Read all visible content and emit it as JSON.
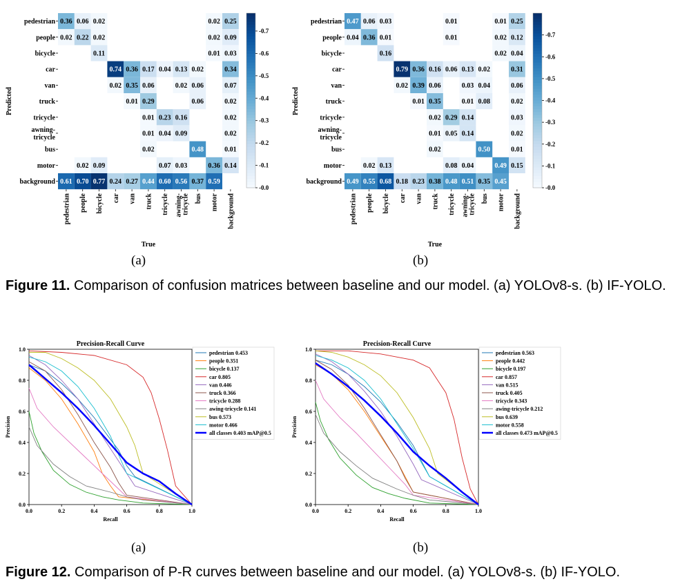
{
  "colors": {
    "cm_low": "#f7fbff",
    "cm_high": "#08306b",
    "pr_mean": "#0000ff"
  },
  "figure11": {
    "caption_label": "Figure 11.",
    "caption_text": "Comparison of confusion matrices between baseline and our model. (a) YOLOv8-s. (b) IF-YOLO.",
    "panel_a": "(a)",
    "panel_b": "(b)",
    "row_labels": [
      "pedestrian",
      "people",
      "bicycle",
      "car",
      "van",
      "truck",
      "tricycle",
      "awning-tricycle",
      "bus",
      "motor",
      "background"
    ],
    "col_labels": [
      "pedestrian",
      "people",
      "bicycle",
      "car",
      "van",
      "truck",
      "tricycle",
      "awning-tricycle",
      "bus",
      "motor",
      "background"
    ],
    "xlabel": "True",
    "ylabel": "Predicted",
    "colorbar_ticks": [
      "0.0",
      "0.1",
      "0.2",
      "0.3",
      "0.4",
      "0.5",
      "0.6",
      "0.7"
    ]
  },
  "figure12": {
    "caption_label": "Figure 12.",
    "caption_text": "Comparison of P-R curves between baseline and our model. (a) YOLOv8-s. (b) IF-YOLO.",
    "panel_a": "(a)",
    "panel_b": "(b)",
    "ticks": [
      "0.0",
      "0.2",
      "0.4",
      "0.6",
      "0.8",
      "1.0"
    ]
  },
  "chart_data": [
    {
      "type": "heatmap",
      "panel": "a",
      "xlabel": "True",
      "ylabel": "Predicted",
      "rows": [
        "pedestrian",
        "people",
        "bicycle",
        "car",
        "van",
        "truck",
        "tricycle",
        "awning-tricycle",
        "bus",
        "motor",
        "background"
      ],
      "cols": [
        "pedestrian",
        "people",
        "bicycle",
        "car",
        "van",
        "truck",
        "tricycle",
        "awning-tricycle",
        "bus",
        "motor",
        "background"
      ],
      "range": [
        0,
        0.78
      ],
      "values": [
        [
          0.36,
          0.06,
          0.02,
          null,
          null,
          null,
          null,
          null,
          null,
          0.02,
          0.25
        ],
        [
          0.02,
          0.22,
          0.02,
          null,
          null,
          null,
          null,
          null,
          null,
          0.02,
          0.09
        ],
        [
          null,
          null,
          0.11,
          null,
          null,
          null,
          null,
          null,
          null,
          0.01,
          0.03
        ],
        [
          null,
          null,
          null,
          0.74,
          0.36,
          0.17,
          0.04,
          0.13,
          0.02,
          null,
          0.34
        ],
        [
          null,
          null,
          null,
          0.02,
          0.35,
          0.06,
          null,
          0.02,
          0.06,
          null,
          0.07
        ],
        [
          null,
          null,
          null,
          null,
          0.01,
          0.29,
          null,
          null,
          0.06,
          null,
          0.02
        ],
        [
          null,
          null,
          null,
          null,
          null,
          0.01,
          0.23,
          0.16,
          null,
          null,
          0.02
        ],
        [
          null,
          null,
          null,
          null,
          null,
          0.01,
          0.04,
          0.09,
          null,
          null,
          0.02
        ],
        [
          null,
          null,
          null,
          null,
          null,
          0.02,
          null,
          null,
          0.48,
          null,
          0.01
        ],
        [
          null,
          0.02,
          0.09,
          null,
          null,
          null,
          0.07,
          0.03,
          null,
          0.36,
          0.14
        ],
        [
          0.61,
          0.7,
          0.77,
          0.24,
          0.27,
          0.44,
          0.6,
          0.56,
          0.37,
          0.59,
          null
        ]
      ]
    },
    {
      "type": "heatmap",
      "panel": "b",
      "xlabel": "True",
      "ylabel": "Predicted",
      "rows": [
        "pedestrian",
        "people",
        "bicycle",
        "car",
        "van",
        "truck",
        "tricycle",
        "awning-tricycle",
        "bus",
        "motor",
        "background"
      ],
      "cols": [
        "pedestrian",
        "people",
        "bicycle",
        "car",
        "van",
        "truck",
        "tricycle",
        "awning-tricycle",
        "bus",
        "motor",
        "background"
      ],
      "range": [
        0,
        0.8
      ],
      "values": [
        [
          0.47,
          0.06,
          0.03,
          null,
          null,
          null,
          0.01,
          null,
          null,
          0.01,
          0.25
        ],
        [
          0.04,
          0.36,
          0.01,
          null,
          null,
          null,
          0.01,
          null,
          null,
          0.02,
          0.12
        ],
        [
          null,
          null,
          0.16,
          null,
          null,
          null,
          null,
          null,
          null,
          0.02,
          0.04
        ],
        [
          null,
          null,
          null,
          0.79,
          0.36,
          0.16,
          0.06,
          0.13,
          0.02,
          null,
          0.31
        ],
        [
          null,
          null,
          null,
          0.02,
          0.39,
          0.06,
          null,
          0.03,
          0.04,
          null,
          0.06
        ],
        [
          null,
          null,
          null,
          null,
          0.01,
          0.35,
          null,
          0.01,
          0.08,
          null,
          0.02
        ],
        [
          null,
          null,
          null,
          null,
          null,
          0.02,
          0.29,
          0.14,
          null,
          null,
          0.03
        ],
        [
          null,
          null,
          null,
          null,
          null,
          0.01,
          0.05,
          0.14,
          null,
          null,
          0.02
        ],
        [
          null,
          null,
          null,
          null,
          null,
          0.02,
          null,
          null,
          0.5,
          null,
          0.01
        ],
        [
          null,
          0.02,
          0.13,
          null,
          null,
          null,
          0.08,
          0.04,
          null,
          0.49,
          0.15
        ],
        [
          0.49,
          0.55,
          0.68,
          0.18,
          0.23,
          0.38,
          0.48,
          0.51,
          0.35,
          0.45,
          null
        ]
      ]
    },
    {
      "type": "line",
      "panel": "a",
      "title": "Precision-Recall Curve",
      "xlabel": "Recall",
      "ylabel": "Precision",
      "xlim": [
        0,
        1
      ],
      "ylim": [
        0,
        1
      ],
      "series": [
        {
          "name": "pedestrian 0.453",
          "color": "#1f77b4",
          "x": [
            0,
            0.1,
            0.2,
            0.3,
            0.4,
            0.5,
            0.55,
            0.6,
            0.65,
            1.0
          ],
          "y": [
            0.9,
            0.86,
            0.78,
            0.68,
            0.56,
            0.42,
            0.35,
            0.25,
            0.18,
            0
          ]
        },
        {
          "name": "people 0.351",
          "color": "#ff7f0e",
          "x": [
            0,
            0.1,
            0.2,
            0.3,
            0.4,
            0.45,
            0.5,
            0.55,
            1.0
          ],
          "y": [
            0.88,
            0.8,
            0.68,
            0.52,
            0.34,
            0.2,
            0.12,
            0.05,
            0
          ]
        },
        {
          "name": "bicycle 0.137",
          "color": "#2ca02c",
          "x": [
            0,
            0.03,
            0.08,
            0.15,
            0.25,
            0.35,
            0.45,
            0.55,
            0.7,
            1.0
          ],
          "y": [
            0.6,
            0.46,
            0.34,
            0.22,
            0.13,
            0.08,
            0.05,
            0.03,
            0.01,
            0
          ]
        },
        {
          "name": "car 0.805",
          "color": "#d62728",
          "x": [
            0,
            0.2,
            0.4,
            0.6,
            0.7,
            0.75,
            0.8,
            0.85,
            0.9,
            1.0
          ],
          "y": [
            0.99,
            0.98,
            0.96,
            0.9,
            0.82,
            0.72,
            0.55,
            0.35,
            0.12,
            0
          ]
        },
        {
          "name": "van 0.446",
          "color": "#9467bd",
          "x": [
            0,
            0.1,
            0.2,
            0.3,
            0.4,
            0.5,
            0.6,
            0.65,
            1.0
          ],
          "y": [
            0.96,
            0.9,
            0.8,
            0.68,
            0.52,
            0.36,
            0.2,
            0.12,
            0
          ]
        },
        {
          "name": "truck 0.366",
          "color": "#8c564b",
          "x": [
            0,
            0.1,
            0.2,
            0.3,
            0.4,
            0.5,
            0.55,
            0.6,
            1.0
          ],
          "y": [
            0.92,
            0.86,
            0.74,
            0.58,
            0.4,
            0.24,
            0.14,
            0.06,
            0
          ]
        },
        {
          "name": "tricycle 0.288",
          "color": "#e377c2",
          "x": [
            0,
            0.05,
            0.15,
            0.25,
            0.35,
            0.45,
            0.55,
            0.6,
            1.0
          ],
          "y": [
            0.75,
            0.62,
            0.5,
            0.4,
            0.3,
            0.2,
            0.1,
            0.05,
            0
          ]
        },
        {
          "name": "awing-tricycle 0.141",
          "color": "#7f7f7f",
          "x": [
            0,
            0.05,
            0.15,
            0.25,
            0.35,
            0.5,
            0.6,
            0.7,
            1.0
          ],
          "y": [
            0.5,
            0.38,
            0.26,
            0.18,
            0.12,
            0.08,
            0.05,
            0.03,
            0
          ]
        },
        {
          "name": "bus 0.573",
          "color": "#bcbd22",
          "x": [
            0,
            0.1,
            0.2,
            0.3,
            0.4,
            0.5,
            0.6,
            0.65,
            0.7,
            1.0
          ],
          "y": [
            0.98,
            0.98,
            0.94,
            0.88,
            0.8,
            0.68,
            0.5,
            0.38,
            0.2,
            0
          ]
        },
        {
          "name": "motor 0.466",
          "color": "#17becf",
          "x": [
            0,
            0.1,
            0.2,
            0.3,
            0.4,
            0.5,
            0.55,
            0.6,
            1.0
          ],
          "y": [
            0.95,
            0.92,
            0.86,
            0.76,
            0.62,
            0.44,
            0.32,
            0.2,
            0
          ]
        },
        {
          "name": "all classes 0.403 mAP@0.5",
          "color": "#0000ff",
          "width": 2.5,
          "x": [
            0,
            0.1,
            0.2,
            0.3,
            0.4,
            0.5,
            0.6,
            0.7,
            0.8,
            0.9,
            1.0
          ],
          "y": [
            0.9,
            0.81,
            0.72,
            0.62,
            0.51,
            0.39,
            0.27,
            0.2,
            0.15,
            0.07,
            0
          ]
        }
      ]
    },
    {
      "type": "line",
      "panel": "b",
      "title": "Precision-Recall Curve",
      "xlabel": "Recall",
      "ylabel": "Precision",
      "xlim": [
        0,
        1
      ],
      "ylim": [
        0,
        1
      ],
      "series": [
        {
          "name": "pedestrian 0.563",
          "color": "#1f77b4",
          "x": [
            0,
            0.1,
            0.2,
            0.3,
            0.4,
            0.5,
            0.6,
            0.65,
            0.7,
            1.0
          ],
          "y": [
            0.93,
            0.9,
            0.84,
            0.76,
            0.66,
            0.53,
            0.38,
            0.28,
            0.18,
            0
          ]
        },
        {
          "name": "people 0.442",
          "color": "#ff7f0e",
          "x": [
            0,
            0.1,
            0.2,
            0.3,
            0.4,
            0.5,
            0.55,
            0.6,
            1.0
          ],
          "y": [
            0.9,
            0.84,
            0.74,
            0.6,
            0.44,
            0.28,
            0.18,
            0.08,
            0
          ]
        },
        {
          "name": "bicycle 0.197",
          "color": "#2ca02c",
          "x": [
            0,
            0.03,
            0.08,
            0.15,
            0.25,
            0.35,
            0.45,
            0.55,
            0.7,
            1.0
          ],
          "y": [
            0.66,
            0.54,
            0.42,
            0.3,
            0.19,
            0.11,
            0.07,
            0.04,
            0.01,
            0
          ]
        },
        {
          "name": "car 0.857",
          "color": "#d62728",
          "x": [
            0,
            0.2,
            0.4,
            0.6,
            0.7,
            0.8,
            0.85,
            0.9,
            0.95,
            1.0
          ],
          "y": [
            0.99,
            0.99,
            0.97,
            0.93,
            0.88,
            0.72,
            0.55,
            0.3,
            0.1,
            0
          ]
        },
        {
          "name": "van 0.515",
          "color": "#9467bd",
          "x": [
            0,
            0.1,
            0.2,
            0.3,
            0.4,
            0.5,
            0.6,
            0.65,
            1.0
          ],
          "y": [
            0.97,
            0.92,
            0.84,
            0.73,
            0.6,
            0.44,
            0.26,
            0.16,
            0
          ]
        },
        {
          "name": "truck 0.405",
          "color": "#8c564b",
          "x": [
            0,
            0.1,
            0.2,
            0.3,
            0.4,
            0.5,
            0.55,
            0.6,
            1.0
          ],
          "y": [
            0.93,
            0.87,
            0.77,
            0.62,
            0.45,
            0.28,
            0.17,
            0.08,
            0
          ]
        },
        {
          "name": "tricycle 0.343",
          "color": "#e377c2",
          "x": [
            0,
            0.05,
            0.15,
            0.25,
            0.35,
            0.45,
            0.55,
            0.6,
            1.0
          ],
          "y": [
            0.8,
            0.68,
            0.56,
            0.46,
            0.35,
            0.24,
            0.13,
            0.06,
            0
          ]
        },
        {
          "name": "awing-tricycle 0.212",
          "color": "#7f7f7f",
          "x": [
            0,
            0.05,
            0.15,
            0.25,
            0.35,
            0.5,
            0.6,
            0.7,
            1.0
          ],
          "y": [
            0.58,
            0.46,
            0.34,
            0.25,
            0.17,
            0.1,
            0.06,
            0.03,
            0
          ]
        },
        {
          "name": "bus 0.639",
          "color": "#bcbd22",
          "x": [
            0,
            0.1,
            0.2,
            0.3,
            0.4,
            0.5,
            0.6,
            0.7,
            0.75,
            1.0
          ],
          "y": [
            0.99,
            0.98,
            0.95,
            0.9,
            0.83,
            0.72,
            0.56,
            0.36,
            0.2,
            0
          ]
        },
        {
          "name": "motor 0.558",
          "color": "#17becf",
          "x": [
            0,
            0.1,
            0.2,
            0.3,
            0.4,
            0.5,
            0.6,
            0.7,
            1.0
          ],
          "y": [
            0.96,
            0.93,
            0.88,
            0.8,
            0.68,
            0.52,
            0.36,
            0.18,
            0
          ]
        },
        {
          "name": "all classes 0.473 mAP@0.5",
          "color": "#0000ff",
          "width": 2.5,
          "x": [
            0,
            0.1,
            0.2,
            0.3,
            0.4,
            0.5,
            0.6,
            0.7,
            0.8,
            0.9,
            1.0
          ],
          "y": [
            0.91,
            0.84,
            0.76,
            0.67,
            0.57,
            0.46,
            0.34,
            0.25,
            0.17,
            0.08,
            0
          ]
        }
      ]
    }
  ]
}
